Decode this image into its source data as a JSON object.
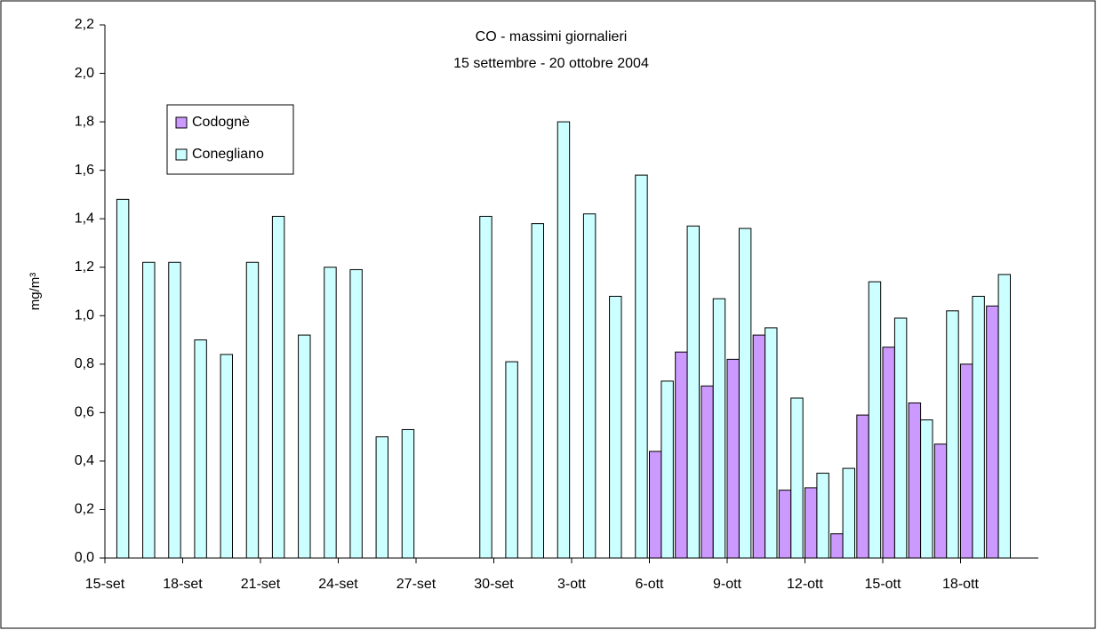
{
  "chart_data": {
    "type": "bar",
    "title": "CO - massimi giornalieri",
    "subtitle": "15 settembre - 20 ottobre 2004",
    "y_label": "mg/m³",
    "categories": [
      "15-set",
      null,
      null,
      "18-set",
      null,
      null,
      "21-set",
      null,
      null,
      "24-set",
      null,
      null,
      "27-set",
      null,
      null,
      "30-set",
      null,
      null,
      "3-ott",
      null,
      null,
      "6-ott",
      null,
      null,
      "9-ott",
      null,
      null,
      "12-ott",
      null,
      null,
      "15-ott",
      null,
      null,
      "18-ott",
      null,
      null
    ],
    "series": [
      {
        "name": "Codognè",
        "color": "#cc99ff",
        "values": [
          null,
          null,
          null,
          null,
          null,
          null,
          null,
          null,
          null,
          null,
          null,
          null,
          null,
          null,
          null,
          null,
          null,
          null,
          null,
          null,
          null,
          0.44,
          0.85,
          0.71,
          0.82,
          0.92,
          0.28,
          0.29,
          0.1,
          0.59,
          0.87,
          0.64,
          0.47,
          0.8,
          1.04,
          null
        ]
      },
      {
        "name": "Conegliano",
        "color": "#ccffff",
        "values": [
          1.48,
          1.22,
          1.22,
          0.9,
          0.84,
          1.22,
          1.41,
          0.92,
          1.2,
          1.19,
          0.5,
          0.53,
          null,
          null,
          1.41,
          0.81,
          1.38,
          1.8,
          1.42,
          1.08,
          1.58,
          0.73,
          1.37,
          1.07,
          1.36,
          0.95,
          0.66,
          0.35,
          0.37,
          1.14,
          0.99,
          0.57,
          1.02,
          1.08,
          1.17,
          null
        ]
      }
    ],
    "ylim": [
      0,
      2.2
    ],
    "yticks": [
      {
        "value": 0,
        "label": "0,0"
      },
      {
        "value": 0.2,
        "label": "0,2"
      },
      {
        "value": 0.4,
        "label": "0,4"
      },
      {
        "value": 0.6,
        "label": "0,6"
      },
      {
        "value": 0.8,
        "label": "0,8"
      },
      {
        "value": 1.0,
        "label": "1,0"
      },
      {
        "value": 1.2,
        "label": "1,2"
      },
      {
        "value": 1.4,
        "label": "1,4"
      },
      {
        "value": 1.6,
        "label": "1,6"
      },
      {
        "value": 1.8,
        "label": "1,8"
      },
      {
        "value": 2.0,
        "label": "2,0"
      },
      {
        "value": 2.2,
        "label": "2,2"
      }
    ],
    "grid": false,
    "legend": "top-left"
  }
}
